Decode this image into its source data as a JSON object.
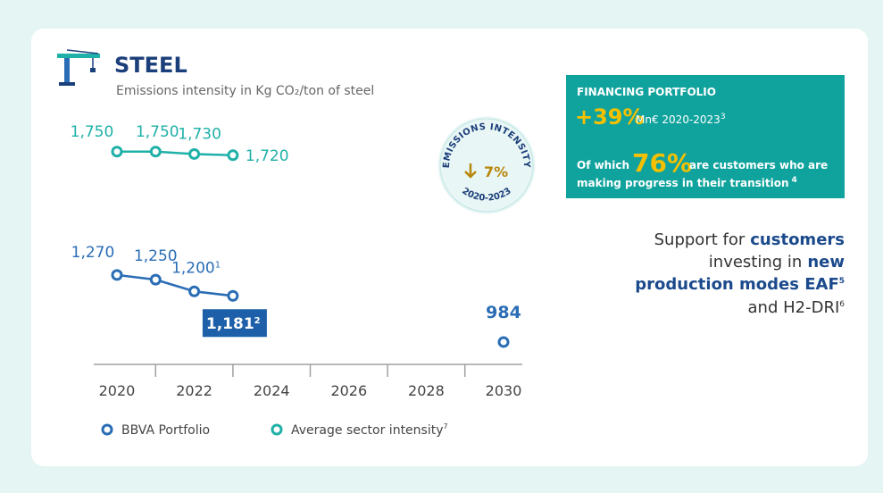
{
  "chart_data": {
    "type": "line",
    "title": "STEEL",
    "subtitle": "Emissions intensity in Kg CO₂/ton of steel",
    "x": [
      2020,
      2021,
      2022,
      2023,
      2024,
      2025,
      2026,
      2027,
      2028,
      2029,
      2030
    ],
    "xlim": [
      2019.4,
      2030.6
    ],
    "xticks": [
      2020,
      2022,
      2024,
      2026,
      2028,
      2030
    ],
    "xminorticks": [
      2021,
      2023,
      2025,
      2027,
      2029
    ],
    "ylim": [
      900,
      1300
    ],
    "y2lim": [
      1600,
      1800
    ],
    "legend": "bottom-left",
    "series": [
      {
        "name": "BBVA Portfolio",
        "color": "#2a6db5",
        "values": [
          1270,
          1250,
          1200,
          1181,
          null,
          null,
          null,
          null,
          null,
          null,
          984
        ],
        "value_labels": [
          "1,270",
          "1,250",
          "1,200",
          "1,181",
          null,
          null,
          null,
          null,
          null,
          null,
          "984"
        ],
        "notes": [
          null,
          null,
          "1",
          "2",
          null,
          null,
          null,
          null,
          null,
          null,
          null
        ]
      },
      {
        "name": "Average sector intensity",
        "name_note": "7",
        "color": "#1fb0a8",
        "axis": "y2",
        "values": [
          1750,
          1750,
          1730,
          1720,
          null,
          null,
          null,
          null,
          null,
          null,
          null
        ],
        "value_labels": [
          "1,750",
          "1,750",
          "1,730",
          "1,720",
          null,
          null,
          null,
          null,
          null,
          null,
          null
        ]
      }
    ]
  },
  "badge": {
    "top": "EMISSIONS INTENSITY",
    "change": "7%",
    "bottom": "2020-2023"
  },
  "financing": {
    "title": "FINANCING PORTFOLIO",
    "growth": "+39%",
    "growth_text": "Mn€ 2020-2023",
    "growth_ref": "3",
    "share_prefix": "Of which",
    "share": "76%",
    "share_text": "are customers who are",
    "share_text2": "making progress in their transition",
    "share_ref": "4"
  },
  "support": {
    "l1a": "Support for",
    "l1b": "customers",
    "l2a": "investing in",
    "l2b": "new",
    "l3": "production modes EAF",
    "l3ref": "5",
    "l4": "and H2-DRI",
    "l4ref": "6"
  }
}
